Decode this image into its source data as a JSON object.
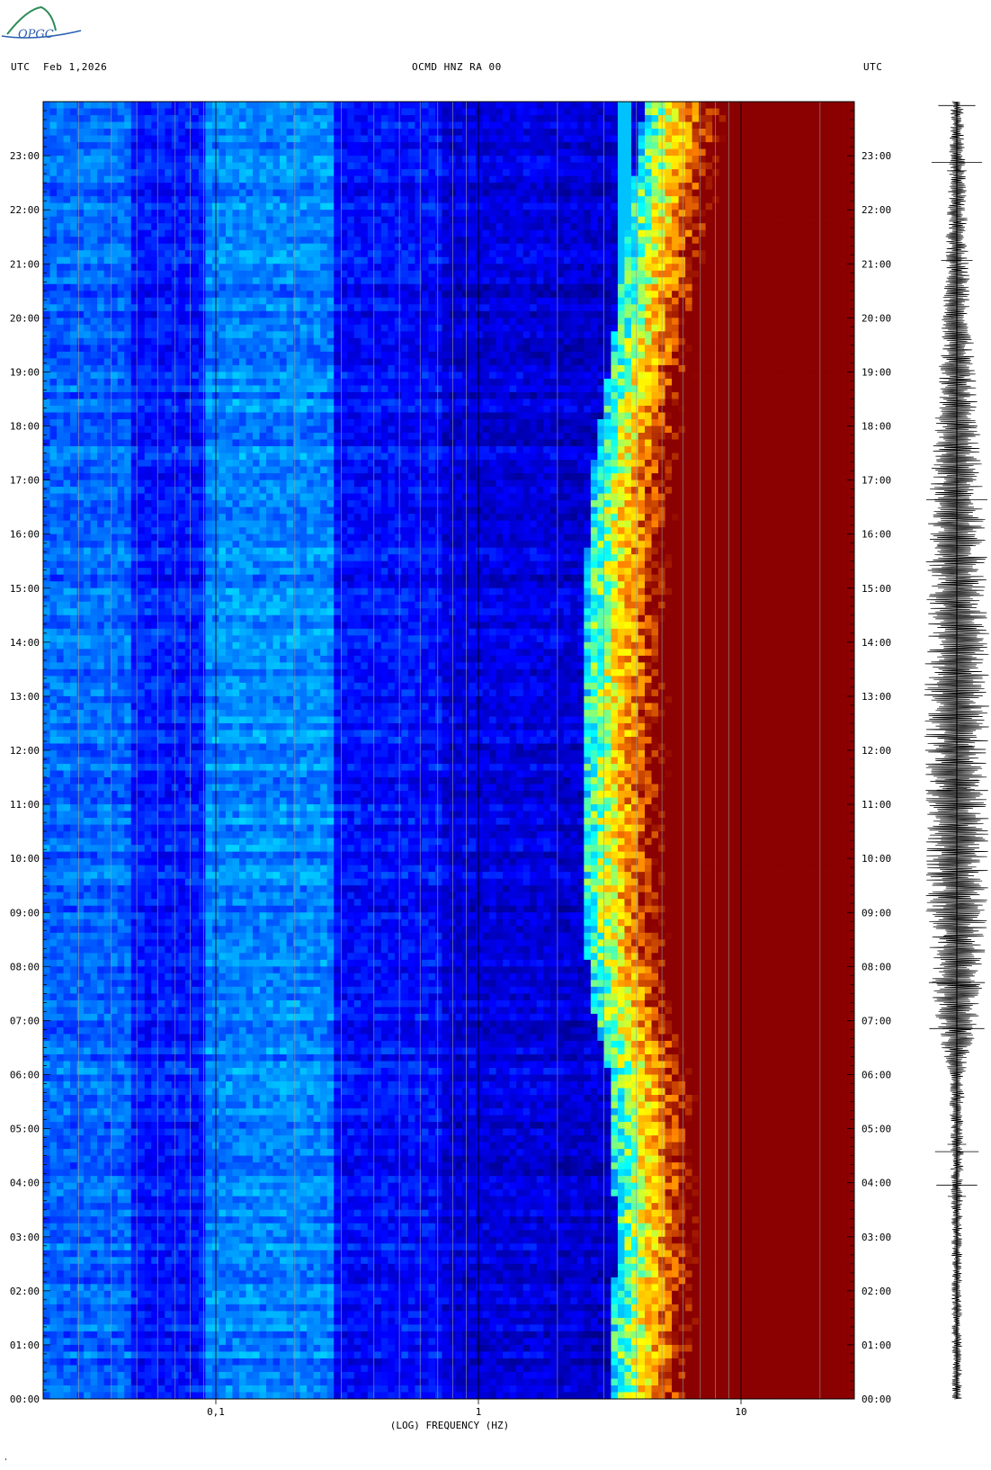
{
  "header": {
    "utc_left": "UTC",
    "date": "Feb 1,2026",
    "station": "OCMD HNZ RA 00",
    "utc_right": "UTC"
  },
  "logo_text": "OPGC",
  "chart_data": {
    "type": "heatmap",
    "title": "OCMD HNZ RA 00",
    "xlabel": "(LOG) FREQUENCY (HZ)",
    "ylabel": "",
    "x_scale": "log",
    "xlim": [
      0.022,
      27
    ],
    "ylim": [
      0,
      24
    ],
    "x_tick_labels": [
      {
        "value": 0.1,
        "label": "0,1"
      },
      {
        "value": 1,
        "label": "1"
      },
      {
        "value": 10,
        "label": "10"
      }
    ],
    "y_tick_labels": [
      "00:00",
      "01:00",
      "02:00",
      "03:00",
      "04:00",
      "05:00",
      "06:00",
      "07:00",
      "08:00",
      "09:00",
      "10:00",
      "11:00",
      "12:00",
      "13:00",
      "14:00",
      "15:00",
      "16:00",
      "17:00",
      "18:00",
      "19:00",
      "20:00",
      "21:00",
      "22:00",
      "23:00"
    ],
    "colormap": [
      "#00008b",
      "#0000ff",
      "#0080ff",
      "#00ffff",
      "#ffff00",
      "#ff8000",
      "#8b0000"
    ],
    "corner_frequency_hz_by_hour": [
      {
        "hour": 0,
        "f": 7.0
      },
      {
        "hour": 3,
        "f": 7.5
      },
      {
        "hour": 6,
        "f": 7.0
      },
      {
        "hour": 7,
        "f": 6.2
      },
      {
        "hour": 9,
        "f": 5.5
      },
      {
        "hour": 12,
        "f": 5.6
      },
      {
        "hour": 15,
        "f": 5.7
      },
      {
        "hour": 17,
        "f": 6.0
      },
      {
        "hour": 19,
        "f": 7.0
      },
      {
        "hour": 21,
        "f": 8.0
      },
      {
        "hour": 24,
        "f": 9.5
      }
    ],
    "narrowband_line_hz": 3.6,
    "seismogram_envelope_by_hour": [
      {
        "hour": 0,
        "amp": 0.12
      },
      {
        "hour": 3,
        "amp": 0.13
      },
      {
        "hour": 6,
        "amp": 0.2
      },
      {
        "hour": 7,
        "amp": 0.55
      },
      {
        "hour": 9,
        "amp": 0.75
      },
      {
        "hour": 12,
        "amp": 0.8
      },
      {
        "hour": 15,
        "amp": 0.78
      },
      {
        "hour": 17,
        "amp": 0.65
      },
      {
        "hour": 19,
        "amp": 0.45
      },
      {
        "hour": 21,
        "amp": 0.3
      },
      {
        "hour": 24,
        "amp": 0.15
      }
    ]
  }
}
